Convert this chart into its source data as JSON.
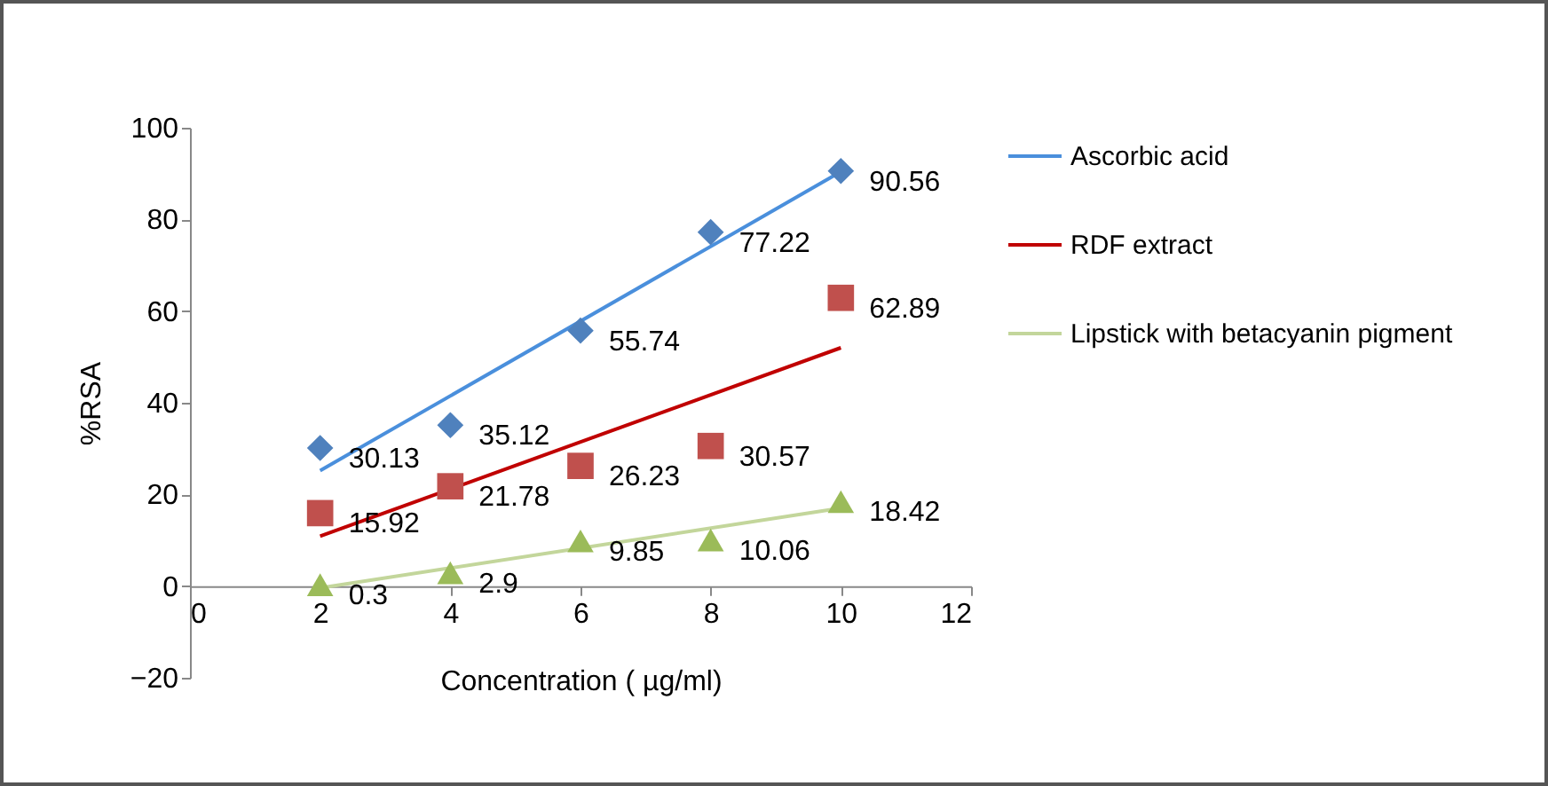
{
  "chart_data": {
    "type": "scatter",
    "xlabel": "Concentration ( µg/ml)",
    "ylabel": "%RSA",
    "xlim": [
      0,
      12
    ],
    "xticks": [
      0,
      2,
      4,
      6,
      8,
      10,
      12
    ],
    "ylim": [
      -20,
      100
    ],
    "yticks": [
      -20,
      0,
      20,
      40,
      60,
      80,
      100
    ],
    "grid": false,
    "legend": "right",
    "series": [
      {
        "marker": "diamond",
        "color": "#4f81bd",
        "x": [
          2,
          4,
          6,
          8,
          10
        ],
        "values": [
          30.13,
          35.12,
          55.74,
          77.22,
          90.56
        ],
        "value_labels": [
          "30.13",
          "35.12",
          "55.74",
          "77.22",
          "90.56"
        ]
      },
      {
        "marker": "square",
        "color": "#c0504d",
        "x": [
          2,
          4,
          6,
          8,
          10
        ],
        "values": [
          15.92,
          21.78,
          26.23,
          30.57,
          62.89
        ],
        "value_labels": [
          "15.92",
          "21.78",
          "26.23",
          "30.57",
          "62.89"
        ]
      },
      {
        "marker": "triangle",
        "color": "#9bbb59",
        "x": [
          2,
          4,
          6,
          8,
          10
        ],
        "values": [
          0.3,
          2.9,
          9.85,
          10.06,
          18.42
        ],
        "value_labels": [
          "0.3",
          "2.9",
          "9.85",
          "10.06",
          "18.42"
        ]
      },
      {
        "type": "line",
        "name": "Ascorbic acid",
        "color": "#4a8fdc",
        "x": [
          2,
          10
        ],
        "values": [
          25.2,
          90.4
        ]
      },
      {
        "type": "line",
        "name": "RDF extract",
        "color": "#c00000",
        "x": [
          2,
          10
        ],
        "values": [
          10.9,
          52.0
        ]
      },
      {
        "type": "line",
        "name": "Lipstick with betacyanin pigment",
        "color": "#c3d69b",
        "x": [
          2,
          10
        ],
        "values": [
          -0.4,
          17.0
        ]
      }
    ]
  }
}
